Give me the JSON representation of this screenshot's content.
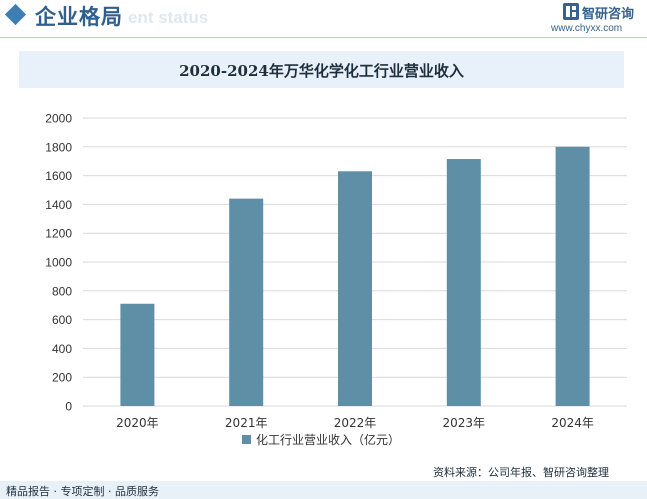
{
  "header": {
    "section_title": "企业格局",
    "section_subtitle": "ent status",
    "logo_name": "智研咨询",
    "logo_url": "www.chyxx.com",
    "accent_color": "#3d7fb3"
  },
  "chart_data": {
    "type": "bar",
    "title": "2020-2024年万华化学化工行业营业收入",
    "categories": [
      "2020年",
      "2021年",
      "2022年",
      "2023年",
      "2024年"
    ],
    "series": [
      {
        "name": "化工行业营业收入（亿元）",
        "values": [
          710,
          1440,
          1630,
          1715,
          1800
        ],
        "color": "#5e8fa6"
      }
    ],
    "ylim": [
      0,
      2000
    ],
    "yticks": [
      0,
      200,
      400,
      600,
      800,
      1000,
      1200,
      1400,
      1600,
      1800,
      2000
    ],
    "grid": true,
    "legend_position": "bottom"
  },
  "footer": {
    "tagline": "精品报告 · 专项定制 · 品质服务",
    "source": "资料来源：公司年报、智研咨询整理"
  }
}
